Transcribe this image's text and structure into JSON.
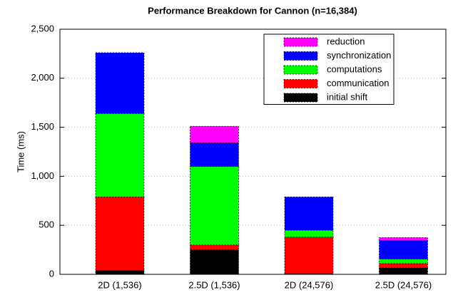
{
  "chart_data": {
    "type": "stacked-bar",
    "title": "Performance Breakdown for Cannon (n=16,384)",
    "y_label": "Time (ms)",
    "categories": [
      "2D (1,536)",
      "2.5D (1,536)",
      "2D (24,576)",
      "2.5D (24,576)"
    ],
    "series": [
      {
        "name": "initial shift",
        "color": "#000000",
        "values": [
          40,
          250,
          5,
          65
        ]
      },
      {
        "name": "communication",
        "color": "#ff0000",
        "values": [
          750,
          50,
          375,
          45
        ]
      },
      {
        "name": "computations",
        "color": "#00ff00",
        "values": [
          850,
          800,
          70,
          45
        ]
      },
      {
        "name": "synchronization",
        "color": "#0000ff",
        "values": [
          620,
          240,
          340,
          190
        ]
      },
      {
        "name": "reduction",
        "color": "#ff00ff",
        "values": [
          0,
          170,
          0,
          30
        ]
      }
    ],
    "ylim": [
      0,
      2500
    ],
    "yticks": [
      0,
      500,
      {
        "value": 1000,
        "label": "1,000"
      },
      {
        "value": 1500,
        "label": "1,500"
      },
      {
        "value": 2000,
        "label": "2,000"
      },
      {
        "value": 2500,
        "label": "2,500"
      }
    ],
    "grid": true,
    "legend": "top-right"
  }
}
